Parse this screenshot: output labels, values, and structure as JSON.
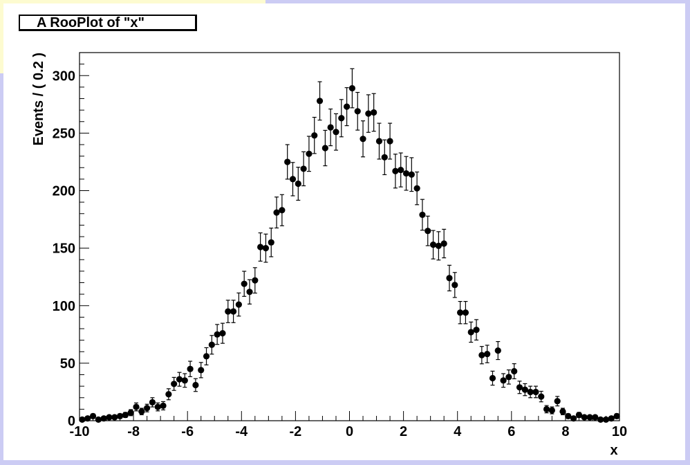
{
  "chart_data": {
    "type": "scatter",
    "title": "A RooPlot of \"x\"",
    "xlabel": "x",
    "ylabel": "Events / ( 0.2 )",
    "xlim": [
      -10,
      10
    ],
    "ylim": [
      0,
      320
    ],
    "xticks": [
      "-10",
      "-8",
      "-6",
      "-4",
      "-2",
      "0",
      "2",
      "4",
      "6",
      "8",
      "10"
    ],
    "yticks": [
      "0",
      "50",
      "100",
      "150",
      "200",
      "250",
      "300"
    ],
    "grid": false,
    "error_bars": "sqrt(N)",
    "x": [
      -9.9,
      -9.7,
      -9.5,
      -9.3,
      -9.1,
      -8.9,
      -8.7,
      -8.5,
      -8.3,
      -8.1,
      -7.9,
      -7.7,
      -7.5,
      -7.3,
      -7.1,
      -6.9,
      -6.7,
      -6.5,
      -6.3,
      -6.1,
      -5.9,
      -5.7,
      -5.5,
      -5.3,
      -5.1,
      -4.9,
      -4.7,
      -4.5,
      -4.3,
      -4.1,
      -3.9,
      -3.7,
      -3.5,
      -3.3,
      -3.1,
      -2.9,
      -2.7,
      -2.5,
      -2.3,
      -2.1,
      -1.9,
      -1.7,
      -1.5,
      -1.3,
      -1.1,
      -0.9,
      -0.7,
      -0.5,
      -0.3,
      -0.1,
      0.1,
      0.3,
      0.5,
      0.7,
      0.9,
      1.1,
      1.3,
      1.5,
      1.7,
      1.9,
      2.1,
      2.3,
      2.5,
      2.7,
      2.9,
      3.1,
      3.3,
      3.5,
      3.7,
      3.9,
      4.1,
      4.3,
      4.5,
      4.7,
      4.9,
      5.1,
      5.3,
      5.5,
      5.7,
      5.9,
      6.1,
      6.3,
      6.5,
      6.7,
      6.9,
      7.1,
      7.3,
      7.5,
      7.7,
      7.9,
      8.1,
      8.3,
      8.5,
      8.7,
      8.9,
      9.1,
      9.3,
      9.5,
      9.7,
      9.9
    ],
    "y": [
      1,
      2,
      4,
      1,
      2,
      3,
      3,
      4,
      5,
      7,
      12,
      8,
      11,
      16,
      12,
      13,
      23,
      32,
      36,
      35,
      45,
      31,
      44,
      56,
      66,
      75,
      76,
      95,
      95,
      101,
      119,
      112,
      122,
      151,
      150,
      155,
      181,
      183,
      225,
      210,
      206,
      219,
      232,
      248,
      278,
      237,
      255,
      251,
      263,
      273,
      289,
      269,
      245,
      267,
      268,
      243,
      229,
      243,
      217,
      218,
      215,
      214,
      202,
      179,
      165,
      153,
      152,
      154,
      124,
      118,
      94,
      94,
      77,
      79,
      57,
      58,
      37,
      61,
      35,
      38,
      43,
      29,
      27,
      25,
      25,
      21,
      10,
      9,
      17,
      8,
      4,
      2,
      5,
      3,
      3,
      3,
      1,
      1,
      2,
      4
    ]
  }
}
